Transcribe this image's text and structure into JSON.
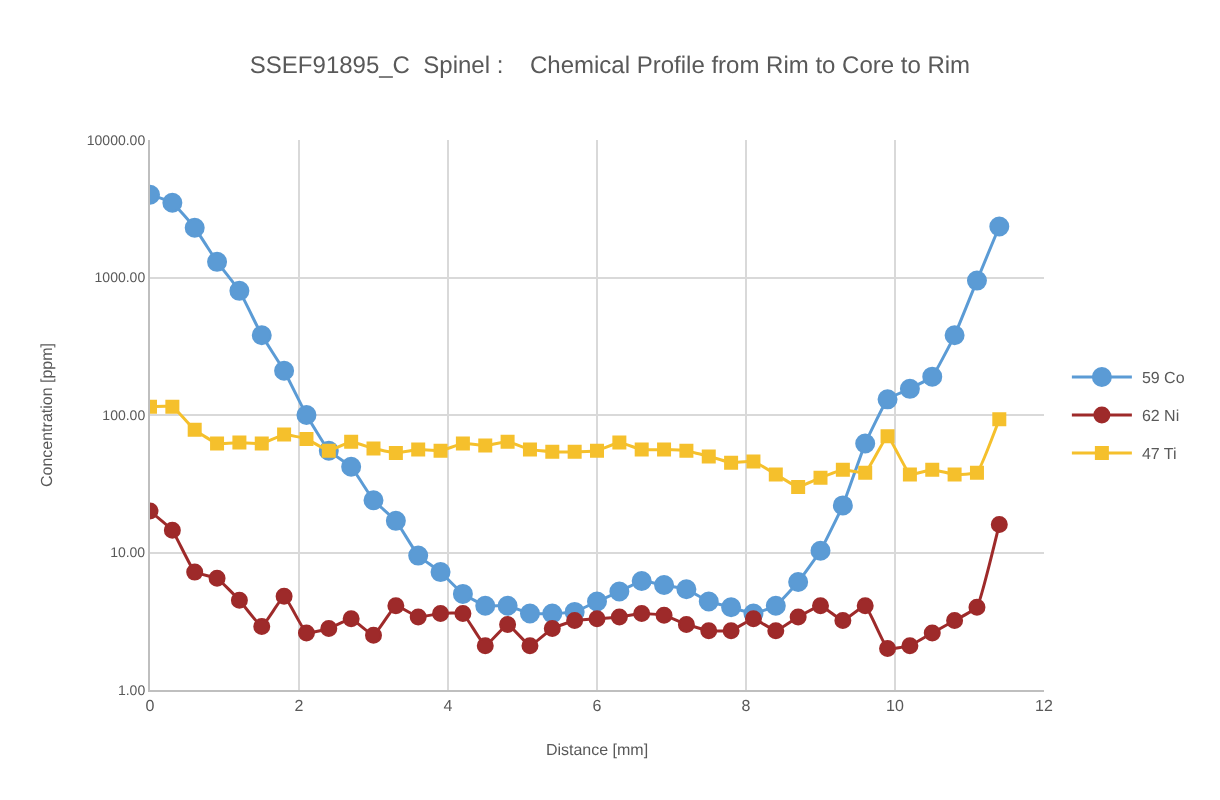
{
  "chart_data": {
    "type": "line",
    "title": "SSEF91895_C  Spinel :    Chemical Profile from Rim to Core to Rim",
    "xlabel": "Distance [mm]",
    "ylabel": "Concentration [ppm]",
    "x": [
      0,
      0.3,
      0.6,
      0.9,
      1.2,
      1.5,
      1.8,
      2.1,
      2.4,
      2.7,
      3.0,
      3.3,
      3.6,
      3.9,
      4.2,
      4.5,
      4.8,
      5.1,
      5.4,
      5.7,
      6.0,
      6.3,
      6.6,
      6.9,
      7.2,
      7.5,
      7.8,
      8.1,
      8.4,
      8.7,
      9.0,
      9.3,
      9.6,
      9.9,
      10.2,
      10.5,
      10.8,
      11.1,
      11.4
    ],
    "series": [
      {
        "name": "59 Co",
        "color": "#5b9bd5",
        "marker": "circle",
        "values": [
          4000,
          3500,
          2300,
          1300,
          800,
          380,
          210,
          100,
          55,
          42,
          24,
          17,
          9.5,
          7.2,
          5,
          4.1,
          4.1,
          3.6,
          3.6,
          3.7,
          4.4,
          5.2,
          6.2,
          5.8,
          5.4,
          4.4,
          4,
          3.6,
          4.1,
          6.1,
          10.3,
          22,
          62,
          130,
          155,
          190,
          380,
          950,
          2350
        ]
      },
      {
        "name": "62 Ni",
        "color": "#9e2a2a",
        "marker": "circle",
        "values": [
          20,
          14.5,
          7.2,
          6.5,
          4.5,
          2.9,
          4.8,
          2.6,
          2.8,
          3.3,
          2.5,
          4.1,
          3.4,
          3.6,
          3.6,
          2.1,
          3.0,
          2.1,
          2.8,
          3.2,
          3.3,
          3.4,
          3.6,
          3.5,
          3.0,
          2.7,
          2.7,
          3.3,
          2.7,
          3.4,
          4.1,
          3.2,
          4.1,
          2.0,
          2.1,
          2.6,
          3.2,
          4.0,
          16
        ]
      },
      {
        "name": "47 Ti",
        "color": "#f5c02c",
        "marker": "square",
        "values": [
          115,
          115,
          78,
          62,
          63,
          62,
          72,
          67,
          55,
          64,
          57,
          53,
          56,
          55,
          62,
          60,
          64,
          56,
          54,
          54,
          55,
          63,
          56,
          56,
          55,
          50,
          45,
          46,
          37,
          30,
          35,
          40,
          38,
          70,
          37,
          40,
          37,
          38,
          93
        ]
      }
    ],
    "log": "y",
    "xlim": [
      0,
      12
    ],
    "xticks": [
      0,
      2,
      4,
      6,
      8,
      10,
      12
    ],
    "ylim": [
      1,
      10000
    ],
    "yticks": [
      {
        "value": 1,
        "label": "1.00"
      },
      {
        "value": 10,
        "label": "10.00"
      },
      {
        "value": 100,
        "label": "100.00"
      },
      {
        "value": 1000,
        "label": "1000.00"
      },
      {
        "value": 10000,
        "label": "10000.00"
      }
    ],
    "grid": true,
    "legend": "right"
  }
}
